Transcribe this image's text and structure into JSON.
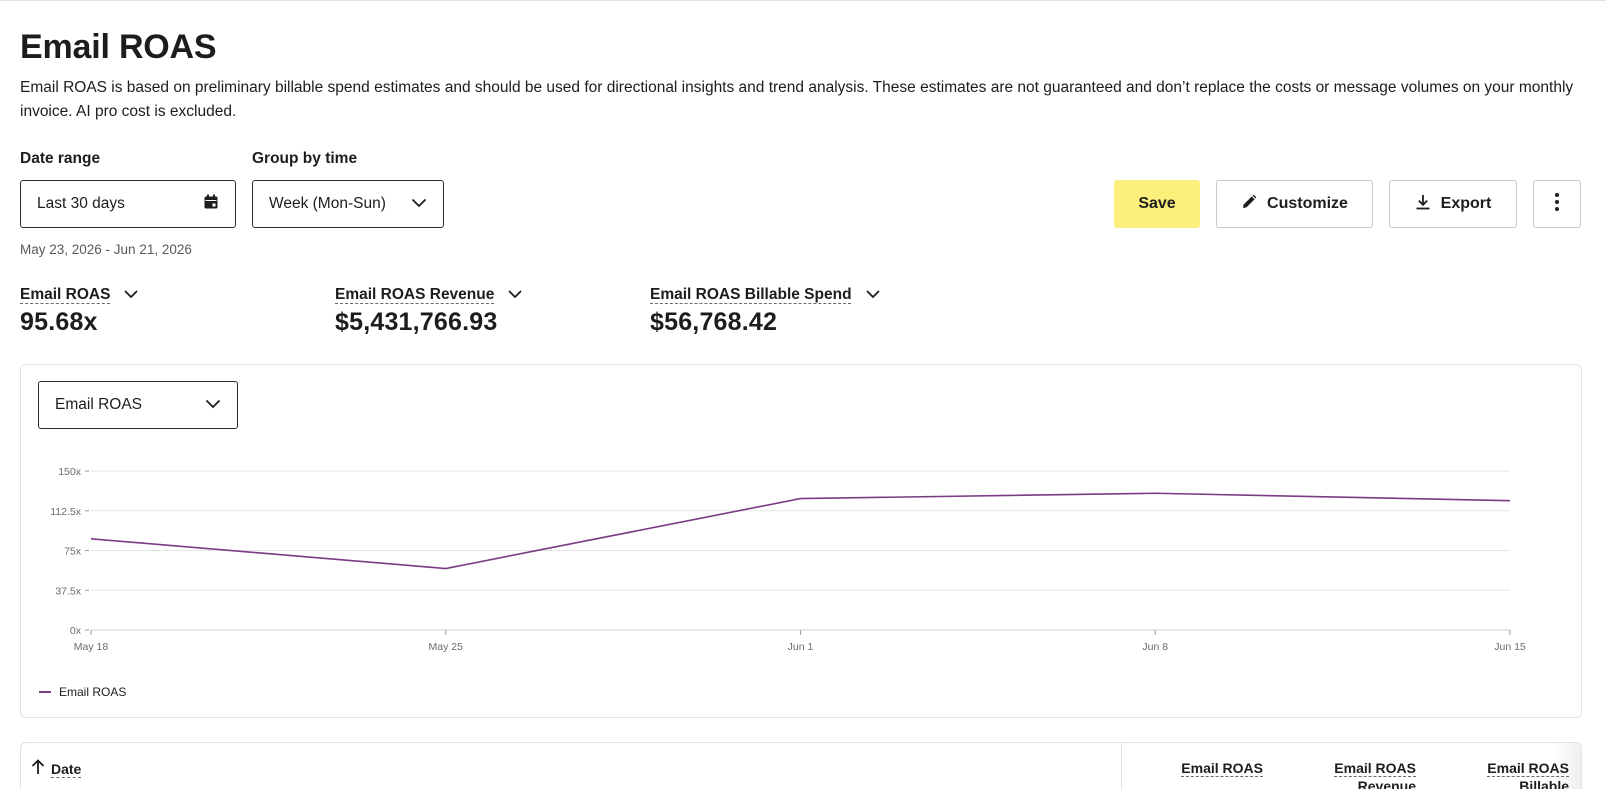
{
  "page": {
    "title": "Email ROAS",
    "description": "Email ROAS is based on preliminary billable spend estimates and should be used for directional insights and trend analysis. These estimates are not guaranteed and don’t replace the costs or message volumes on your monthly invoice. AI pro cost is excluded."
  },
  "filters": {
    "date_range_label": "Date range",
    "date_range_value": "Last 30 days",
    "date_range_sub": "May 23, 2026 - Jun 21, 2026",
    "group_by_label": "Group by time",
    "group_by_value": "Week (Mon-Sun)"
  },
  "toolbar": {
    "save_label": "Save",
    "customize_label": "Customize",
    "export_label": "Export"
  },
  "metrics": [
    {
      "label": "Email ROAS",
      "value": "95.68x"
    },
    {
      "label": "Email ROAS Revenue",
      "value": "$5,431,766.93"
    },
    {
      "label": "Email ROAS Billable Spend",
      "value": "$56,768.42"
    }
  ],
  "chart_selector": {
    "value": "Email ROAS"
  },
  "chart_data": {
    "type": "line",
    "categories": [
      "May 18",
      "May 25",
      "Jun 1",
      "Jun 8",
      "Jun 15"
    ],
    "series": [
      {
        "name": "Email ROAS",
        "values": [
          86,
          58,
          124,
          129,
          122
        ],
        "color": "#7b3b85"
      }
    ],
    "ylim": [
      0,
      150
    ],
    "yticks": [
      "0x",
      "37.5x",
      "75x",
      "112.5x",
      "150x"
    ],
    "ytick_values": [
      0,
      37.5,
      75,
      112.5,
      150
    ],
    "grid": true,
    "legend": "bottom-left"
  },
  "table": {
    "date_header": "Date",
    "columns": [
      "Email ROAS",
      "Email ROAS Revenue",
      "Email ROAS Billable"
    ]
  },
  "colors": {
    "accent_yellow": "#fdef7b",
    "series_purple": "#7b3b85"
  }
}
